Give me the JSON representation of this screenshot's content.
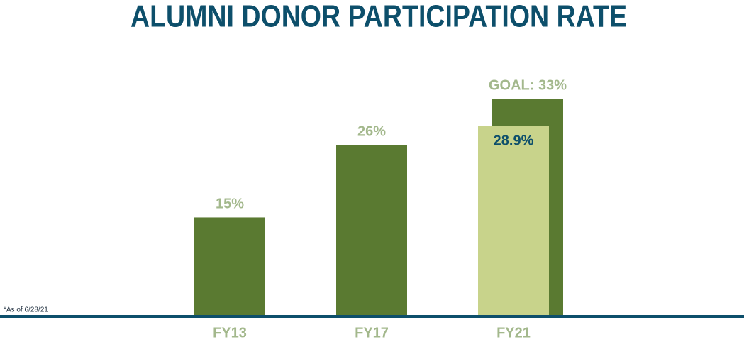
{
  "chart_data": {
    "type": "bar",
    "title": "ALUMNI DONOR PARTICIPATION RATE",
    "footnote": "*As of 6/28/21",
    "categories": [
      "FY13",
      "FY17",
      "FY21"
    ],
    "series": [
      {
        "color": "#5a7a31",
        "values": [
          15,
          26,
          33
        ],
        "value_labels": [
          "15%",
          "26%",
          "GOAL: 33%"
        ]
      },
      {
        "color": "#c8d38b",
        "values": [
          null,
          null,
          28.9
        ],
        "value_labels": [
          null,
          null,
          "28.9%"
        ]
      }
    ]
  }
}
